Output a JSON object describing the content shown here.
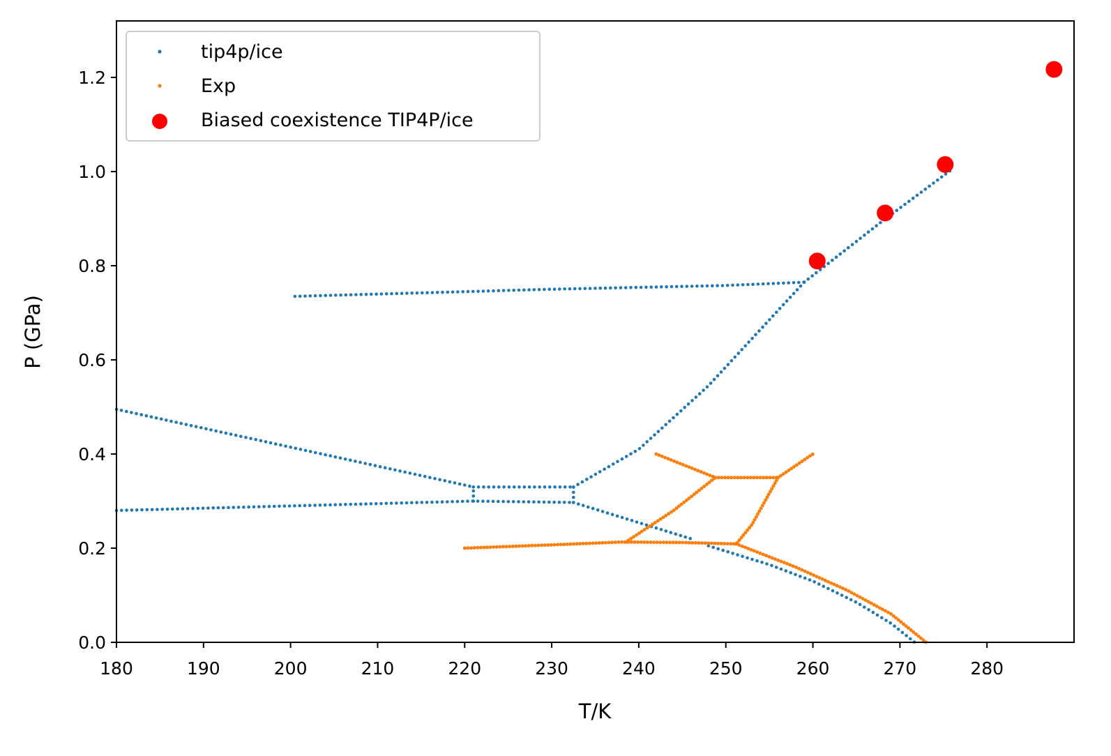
{
  "chart_data": {
    "type": "scatter",
    "xlabel": "T/K",
    "ylabel": "P (GPa)",
    "xlim": [
      180,
      290
    ],
    "ylim": [
      0,
      1.32
    ],
    "xticks": [
      180,
      190,
      200,
      210,
      220,
      230,
      240,
      250,
      260,
      270,
      280
    ],
    "yticks": [
      0.0,
      0.2,
      0.4,
      0.6,
      0.8,
      1.0,
      1.2
    ],
    "xtick_labels": [
      "180",
      "190",
      "200",
      "210",
      "220",
      "230",
      "240",
      "250",
      "260",
      "270",
      "280"
    ],
    "ytick_labels": [
      "0.0",
      "0.2",
      "0.4",
      "0.6",
      "0.8",
      "1.0",
      "1.2"
    ],
    "grid": false,
    "legend_position": "top-left",
    "legend": [
      {
        "label": "tip4p/ice",
        "color": "#1f77b4",
        "marker": "small-dot"
      },
      {
        "label": "Exp",
        "color": "#ff7f0e",
        "marker": "small-dot"
      },
      {
        "label": "Biased coexistence TIP4P/ice",
        "color": "#ff0000",
        "marker": "large-dot"
      }
    ],
    "series": [
      {
        "name": "tip4p/ice",
        "color": "#1f77b4",
        "style": "dense-points",
        "segments": [
          {
            "x": [
              180,
              221,
              232.5
            ],
            "y": [
              0.28,
              0.3,
              0.297
            ]
          },
          {
            "x": [
              180,
              221
            ],
            "y": [
              0.495,
              0.33
            ]
          },
          {
            "x": [
              221,
              232.5
            ],
            "y": [
              0.33,
              0.33
            ]
          },
          {
            "x": [
              221,
              221
            ],
            "y": [
              0.3,
              0.33
            ]
          },
          {
            "x": [
              232.5,
              232.5
            ],
            "y": [
              0.297,
              0.33
            ]
          },
          {
            "x": [
              232.5,
              246
            ],
            "y": [
              0.297,
              0.22
            ]
          },
          {
            "x": [
              232.5,
              240,
              248,
              255,
              259
            ],
            "y": [
              0.33,
              0.41,
              0.545,
              0.685,
              0.765
            ]
          },
          {
            "x": [
              200.5,
              230,
              250,
              259
            ],
            "y": [
              0.735,
              0.75,
              0.758,
              0.765
            ]
          },
          {
            "x": [
              259,
              268,
              276
            ],
            "y": [
              0.765,
              0.895,
              1.005
            ]
          },
          {
            "x": [
              248,
              255,
              260,
              265,
              269,
              271.7
            ],
            "y": [
              0.205,
              0.165,
              0.13,
              0.085,
              0.04,
              0.0
            ]
          }
        ]
      },
      {
        "name": "Exp",
        "color": "#ff7f0e",
        "style": "dense-points",
        "segments": [
          {
            "x": [
              220,
              230,
              238,
              245,
              251.2
            ],
            "y": [
              0.2,
              0.207,
              0.213,
              0.212,
              0.209
            ]
          },
          {
            "x": [
              238.5,
              244,
              248.8
            ],
            "y": [
              0.213,
              0.28,
              0.35
            ]
          },
          {
            "x": [
              242,
              248.8
            ],
            "y": [
              0.4,
              0.35
            ]
          },
          {
            "x": [
              248.8,
              256
            ],
            "y": [
              0.35,
              0.35
            ]
          },
          {
            "x": [
              256,
              260
            ],
            "y": [
              0.35,
              0.4
            ]
          },
          {
            "x": [
              256,
              254.5,
              253,
              251.2
            ],
            "y": [
              0.35,
              0.3,
              0.25,
              0.209
            ]
          },
          {
            "x": [
              251.2,
              258,
              264,
              269,
              273
            ],
            "y": [
              0.209,
              0.16,
              0.11,
              0.06,
              0.0
            ]
          }
        ]
      },
      {
        "name": "Biased coexistence TIP4P/ice",
        "color": "#ff0000",
        "style": "large-points",
        "x": [
          260.5,
          268.3,
          275.2,
          287.7
        ],
        "y": [
          0.81,
          0.912,
          1.015,
          1.217
        ]
      }
    ]
  }
}
